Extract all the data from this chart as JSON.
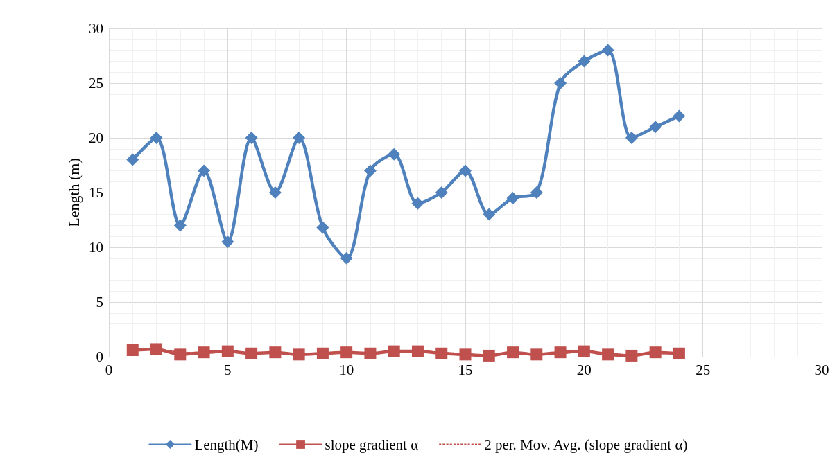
{
  "chart_data": {
    "type": "line",
    "ylabel": "Length (m)",
    "xlim": [
      0,
      30
    ],
    "xticks": [
      0,
      5,
      10,
      15,
      20,
      25,
      30
    ],
    "ylim": [
      0,
      30
    ],
    "yticks": [
      0,
      5,
      10,
      15,
      20,
      25,
      30
    ],
    "grid": true,
    "legend": "bottom",
    "series": [
      {
        "name": "Length(M)",
        "color": "#4f81bd",
        "marker": "diamond",
        "line_style": "solid",
        "x": [
          1,
          2,
          3,
          4,
          5,
          6,
          7,
          8,
          9,
          10,
          11,
          12,
          13,
          14,
          15,
          16,
          17,
          18,
          19,
          20,
          21,
          22,
          23,
          24
        ],
        "values": [
          18,
          20,
          12,
          17,
          10.5,
          20,
          15,
          20,
          11.8,
          9,
          17,
          18.5,
          14,
          15,
          17,
          13,
          14.5,
          15,
          25,
          27,
          28,
          20,
          21,
          22
        ]
      },
      {
        "name": "slope gradient α",
        "color": "#c0504d",
        "marker": "square",
        "line_style": "solid",
        "x": [
          1,
          2,
          3,
          4,
          5,
          6,
          7,
          8,
          9,
          10,
          11,
          12,
          13,
          14,
          15,
          16,
          17,
          18,
          19,
          20,
          21,
          22,
          23,
          24
        ],
        "values": [
          0.6,
          0.7,
          0.2,
          0.4,
          0.5,
          0.3,
          0.4,
          0.2,
          0.3,
          0.4,
          0.3,
          0.5,
          0.5,
          0.3,
          0.2,
          0.1,
          0.4,
          0.2,
          0.4,
          0.5,
          0.2,
          0.1,
          0.4,
          0.3
        ]
      },
      {
        "name": "2 per. Mov. Avg. (slope gradient α)",
        "color": "#c0504d",
        "marker": "none",
        "line_style": "dotted",
        "x": [
          2,
          3,
          4,
          5,
          6,
          7,
          8,
          9,
          10,
          11,
          12,
          13,
          14,
          15,
          16,
          17,
          18,
          19,
          20,
          21,
          22,
          23,
          24
        ],
        "values": [
          0.65,
          0.45,
          0.3,
          0.45,
          0.4,
          0.35,
          0.3,
          0.25,
          0.35,
          0.35,
          0.4,
          0.5,
          0.4,
          0.25,
          0.15,
          0.25,
          0.3,
          0.3,
          0.45,
          0.35,
          0.15,
          0.25,
          0.35
        ]
      }
    ]
  }
}
